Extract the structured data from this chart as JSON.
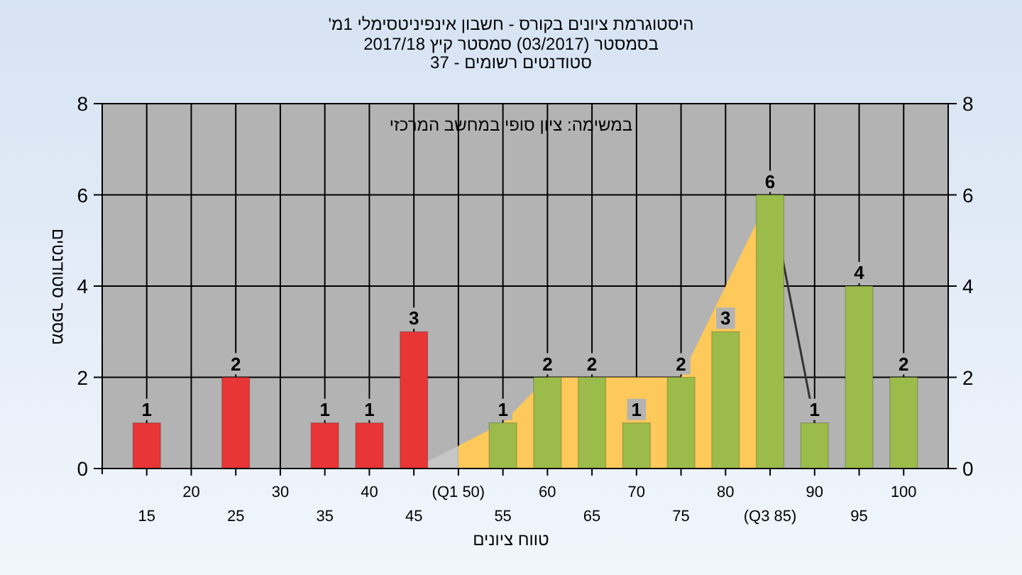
{
  "chart_data": {
    "type": "bar",
    "title": "היסטוגרמת ציונים בקורס - חשבון אינפיניטסימלי 1מ'",
    "subtitle": "בסמסטר  (03/2017)  סמסטר קיץ 2017/18",
    "annotations": [
      "סטודנטים רשומים - 37",
      "במשימה: ציון סופי במחשב המרכזי"
    ],
    "xlabel": "טווח ציונים",
    "ylabel": "מספר סטודנטים",
    "categories": [
      "15",
      "20",
      "25",
      "30",
      "35",
      "40",
      "45",
      "(Q1 50)",
      "55",
      "60",
      "65",
      "70",
      "75",
      "80",
      "(Q3 85)",
      "90",
      "95",
      "100"
    ],
    "series": [
      {
        "type": "area",
        "color": "#c6c6c6",
        "values": [
          null,
          null,
          null,
          null,
          null,
          null,
          0,
          0.5,
          null,
          null,
          null,
          null,
          null,
          null,
          null,
          null,
          null,
          null
        ]
      },
      {
        "type": "area",
        "color": "#fdc95a",
        "values": [
          null,
          null,
          null,
          null,
          null,
          null,
          null,
          0.5,
          1,
          2,
          2,
          2,
          2,
          4,
          6,
          null,
          null,
          null
        ]
      },
      {
        "type": "line",
        "color": "#333333",
        "values": [
          null,
          null,
          null,
          null,
          null,
          null,
          null,
          null,
          null,
          null,
          null,
          null,
          null,
          null,
          6,
          1,
          null,
          null
        ]
      },
      {
        "type": "bar",
        "values": [
          1,
          0,
          2,
          0,
          1,
          1,
          3,
          0,
          1,
          2,
          2,
          1,
          2,
          3,
          6,
          1,
          4,
          2
        ],
        "value_labels": [
          "1",
          null,
          "2",
          null,
          "1",
          "1",
          "3",
          null,
          "1",
          "2",
          "2",
          "1",
          "2",
          "3",
          "6",
          "1",
          "4",
          "2"
        ],
        "colors": [
          "#e83535",
          "#e83535",
          "#e83535",
          "#e83535",
          "#e83535",
          "#e83535",
          "#e83535",
          "#9bbb4a",
          "#9bbb4a",
          "#9bbb4a",
          "#9bbb4a",
          "#9bbb4a",
          "#9bbb4a",
          "#9bbb4a",
          "#9bbb4a",
          "#9bbb4a",
          "#9bbb4a",
          "#9bbb4a"
        ]
      }
    ],
    "ylim": [
      0,
      8
    ],
    "yticks": [
      0,
      2,
      4,
      6,
      8
    ],
    "y2lim": [
      0,
      8
    ],
    "y2ticks": [
      0,
      2,
      4,
      6,
      8
    ],
    "grid": true,
    "marker": "none"
  }
}
